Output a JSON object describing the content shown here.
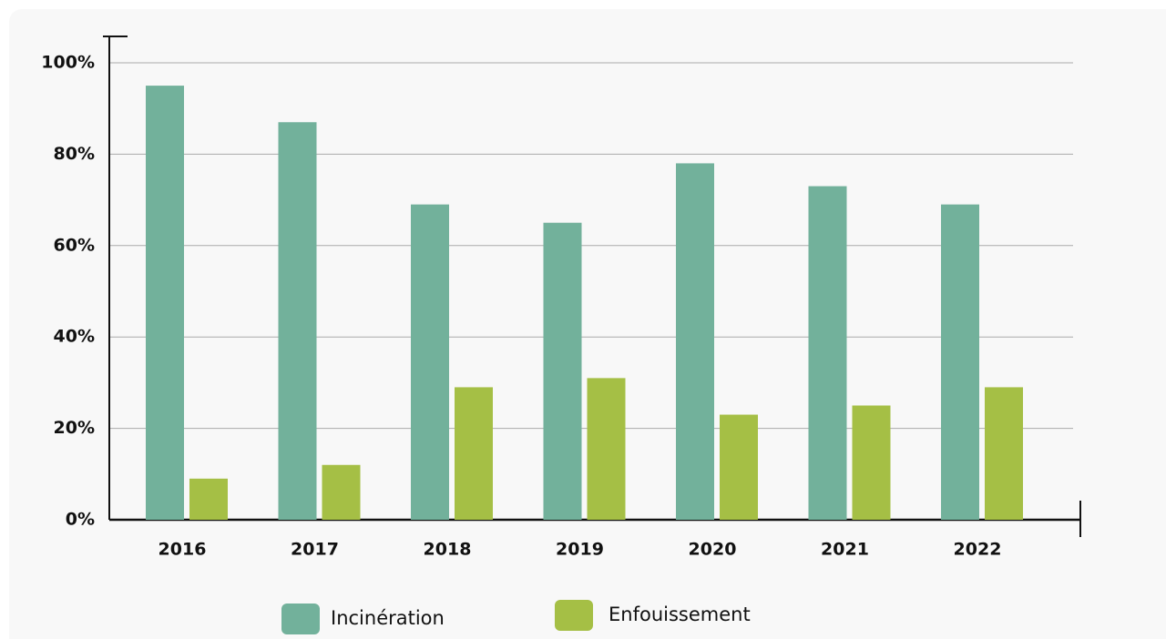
{
  "chart_data": {
    "type": "bar",
    "categories": [
      "2016",
      "2017",
      "2018",
      "2019",
      "2020",
      "2021",
      "2022"
    ],
    "series": [
      {
        "name": "Incinération",
        "color": "#72b19b",
        "values": [
          95,
          87,
          69,
          65,
          78,
          73,
          69
        ]
      },
      {
        "name": "Enfouissement",
        "color": "#a5bf45",
        "values": [
          9,
          12,
          29,
          31,
          23,
          25,
          29
        ]
      }
    ],
    "ylim": [
      0,
      100
    ],
    "yticks": [
      {
        "value": 0,
        "label": "0%"
      },
      {
        "value": 20,
        "label": "20%"
      },
      {
        "value": 40,
        "label": "40%"
      },
      {
        "value": 60,
        "label": "60%"
      },
      {
        "value": 80,
        "label": "80%"
      },
      {
        "value": 100,
        "label": "100%"
      }
    ],
    "grid": true,
    "legend": "bottom"
  }
}
